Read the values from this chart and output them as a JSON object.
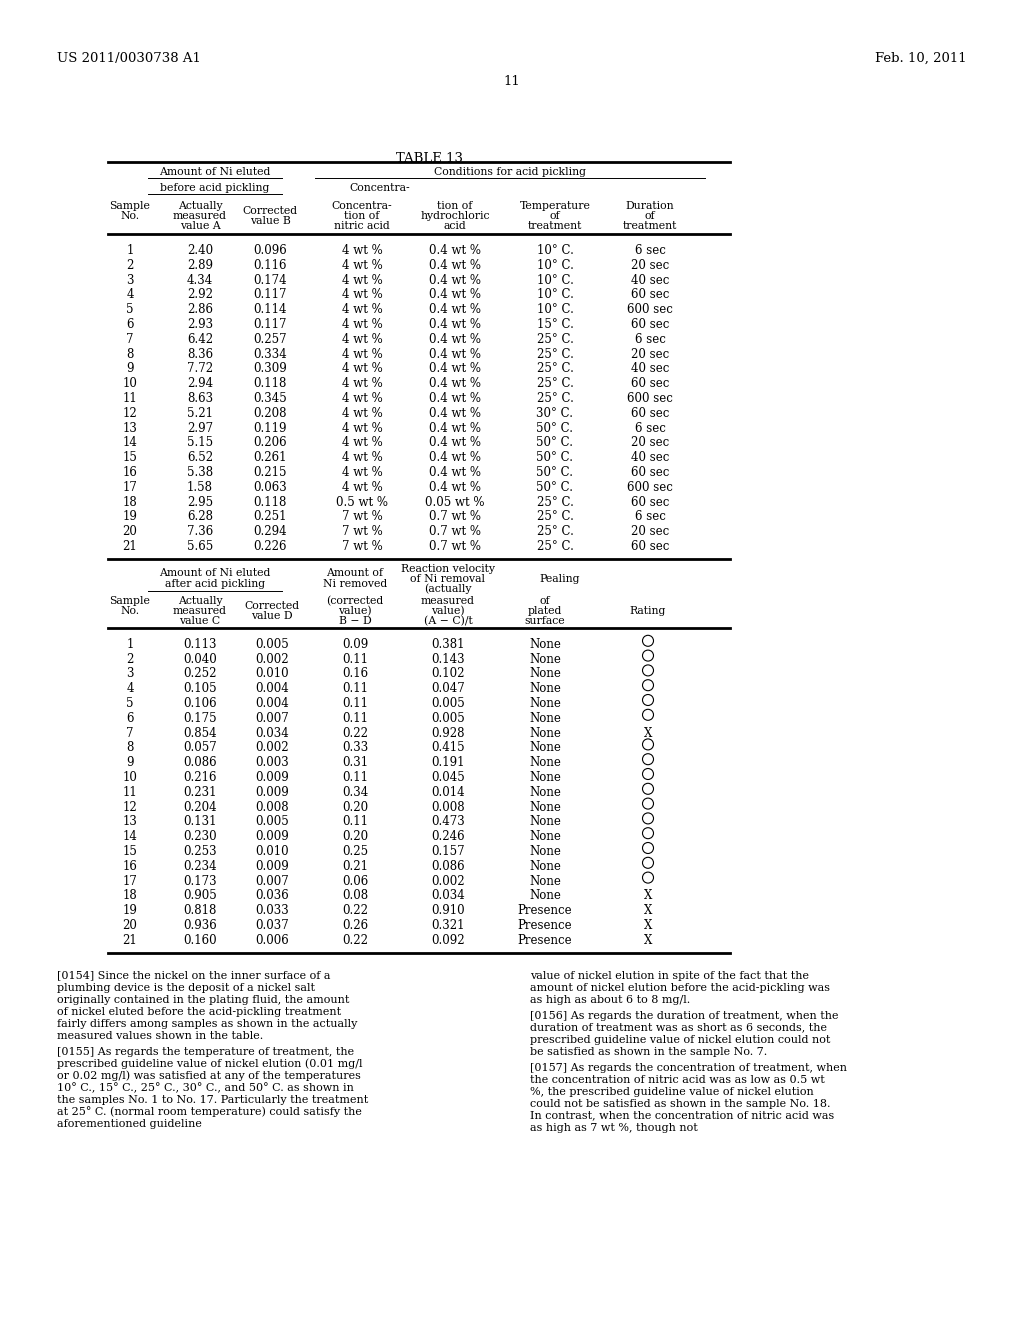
{
  "patent_number": "US 2011/0030738 A1",
  "date": "Feb. 10, 2011",
  "page_number": "11",
  "table_title": "TABLE 13",
  "top_table_data": [
    [
      "1",
      "2.40",
      "0.096",
      "4 wt %",
      "0.4 wt %",
      "10° C.",
      "6 sec"
    ],
    [
      "2",
      "2.89",
      "0.116",
      "4 wt %",
      "0.4 wt %",
      "10° C.",
      "20 sec"
    ],
    [
      "3",
      "4.34",
      "0.174",
      "4 wt %",
      "0.4 wt %",
      "10° C.",
      "40 sec"
    ],
    [
      "4",
      "2.92",
      "0.117",
      "4 wt %",
      "0.4 wt %",
      "10° C.",
      "60 sec"
    ],
    [
      "5",
      "2.86",
      "0.114",
      "4 wt %",
      "0.4 wt %",
      "10° C.",
      "600 sec"
    ],
    [
      "6",
      "2.93",
      "0.117",
      "4 wt %",
      "0.4 wt %",
      "15° C.",
      "60 sec"
    ],
    [
      "7",
      "6.42",
      "0.257",
      "4 wt %",
      "0.4 wt %",
      "25° C.",
      "6 sec"
    ],
    [
      "8",
      "8.36",
      "0.334",
      "4 wt %",
      "0.4 wt %",
      "25° C.",
      "20 sec"
    ],
    [
      "9",
      "7.72",
      "0.309",
      "4 wt %",
      "0.4 wt %",
      "25° C.",
      "40 sec"
    ],
    [
      "10",
      "2.94",
      "0.118",
      "4 wt %",
      "0.4 wt %",
      "25° C.",
      "60 sec"
    ],
    [
      "11",
      "8.63",
      "0.345",
      "4 wt %",
      "0.4 wt %",
      "25° C.",
      "600 sec"
    ],
    [
      "12",
      "5.21",
      "0.208",
      "4 wt %",
      "0.4 wt %",
      "30° C.",
      "60 sec"
    ],
    [
      "13",
      "2.97",
      "0.119",
      "4 wt %",
      "0.4 wt %",
      "50° C.",
      "6 sec"
    ],
    [
      "14",
      "5.15",
      "0.206",
      "4 wt %",
      "0.4 wt %",
      "50° C.",
      "20 sec"
    ],
    [
      "15",
      "6.52",
      "0.261",
      "4 wt %",
      "0.4 wt %",
      "50° C.",
      "40 sec"
    ],
    [
      "16",
      "5.38",
      "0.215",
      "4 wt %",
      "0.4 wt %",
      "50° C.",
      "60 sec"
    ],
    [
      "17",
      "1.58",
      "0.063",
      "4 wt %",
      "0.4 wt %",
      "50° C.",
      "600 sec"
    ],
    [
      "18",
      "2.95",
      "0.118",
      "0.5 wt %",
      "0.05 wt %",
      "25° C.",
      "60 sec"
    ],
    [
      "19",
      "6.28",
      "0.251",
      "7 wt %",
      "0.7 wt %",
      "25° C.",
      "6 sec"
    ],
    [
      "20",
      "7.36",
      "0.294",
      "7 wt %",
      "0.7 wt %",
      "25° C.",
      "20 sec"
    ],
    [
      "21",
      "5.65",
      "0.226",
      "7 wt %",
      "0.7 wt %",
      "25° C.",
      "60 sec"
    ]
  ],
  "bottom_table_data": [
    [
      "1",
      "0.113",
      "0.005",
      "0.09",
      "0.381",
      "None",
      "O"
    ],
    [
      "2",
      "0.040",
      "0.002",
      "0.11",
      "0.143",
      "None",
      "O"
    ],
    [
      "3",
      "0.252",
      "0.010",
      "0.16",
      "0.102",
      "None",
      "O"
    ],
    [
      "4",
      "0.105",
      "0.004",
      "0.11",
      "0.047",
      "None",
      "O"
    ],
    [
      "5",
      "0.106",
      "0.004",
      "0.11",
      "0.005",
      "None",
      "O"
    ],
    [
      "6",
      "0.175",
      "0.007",
      "0.11",
      "0.005",
      "None",
      "O"
    ],
    [
      "7",
      "0.854",
      "0.034",
      "0.22",
      "0.928",
      "None",
      "X"
    ],
    [
      "8",
      "0.057",
      "0.002",
      "0.33",
      "0.415",
      "None",
      "O"
    ],
    [
      "9",
      "0.086",
      "0.003",
      "0.31",
      "0.191",
      "None",
      "O"
    ],
    [
      "10",
      "0.216",
      "0.009",
      "0.11",
      "0.045",
      "None",
      "O"
    ],
    [
      "11",
      "0.231",
      "0.009",
      "0.34",
      "0.014",
      "None",
      "O"
    ],
    [
      "12",
      "0.204",
      "0.008",
      "0.20",
      "0.008",
      "None",
      "O"
    ],
    [
      "13",
      "0.131",
      "0.005",
      "0.11",
      "0.473",
      "None",
      "O"
    ],
    [
      "14",
      "0.230",
      "0.009",
      "0.20",
      "0.246",
      "None",
      "O"
    ],
    [
      "15",
      "0.253",
      "0.010",
      "0.25",
      "0.157",
      "None",
      "O"
    ],
    [
      "16",
      "0.234",
      "0.009",
      "0.21",
      "0.086",
      "None",
      "O"
    ],
    [
      "17",
      "0.173",
      "0.007",
      "0.06",
      "0.002",
      "None",
      "O"
    ],
    [
      "18",
      "0.905",
      "0.036",
      "0.08",
      "0.034",
      "None",
      "X"
    ],
    [
      "19",
      "0.818",
      "0.033",
      "0.22",
      "0.910",
      "Presence",
      "X"
    ],
    [
      "20",
      "0.936",
      "0.037",
      "0.26",
      "0.321",
      "Presence",
      "X"
    ],
    [
      "21",
      "0.160",
      "0.006",
      "0.22",
      "0.092",
      "Presence",
      "X"
    ]
  ],
  "para0": "[0154]  Since the nickel on the inner surface of a plumbing device is the deposit of a nickel salt originally contained in the plating fluid, the amount of nickel eluted before the acid-pickling treatment fairly differs among samples as shown in the actually measured values shown in the table.",
  "para1": "[0155]  As regards the temperature of treatment, the prescribed guideline value of nickel elution (0.01 mg/l or 0.02 mg/l) was satisfied at any of the temperatures 10° C., 15° C., 25° C., 30° C., and 50° C. as shown in the samples No. 1 to No. 17. Particularly the treatment at 25° C. (normal room temperature) could satisfy the aforementioned guideline",
  "para2": "value of nickel elution in spite of the fact that the amount of nickel elution before the acid-pickling was as high as about 6 to 8 mg/l.",
  "para3": "[0156]  As regards the duration of treatment, when the duration of treatment was as short as 6 seconds, the prescribed guideline value of nickel elution could not be satisfied as shown in the sample No. 7.",
  "para4": "[0157]  As regards the concentration of treatment, when the concentration of nitric acid was as low as 0.5 wt %, the prescribed guideline value of nickel elution could not be satisfied as shown in the sample No. 18. In contrast, when the concentration of nitric acid was as high as 7 wt %, though not"
}
